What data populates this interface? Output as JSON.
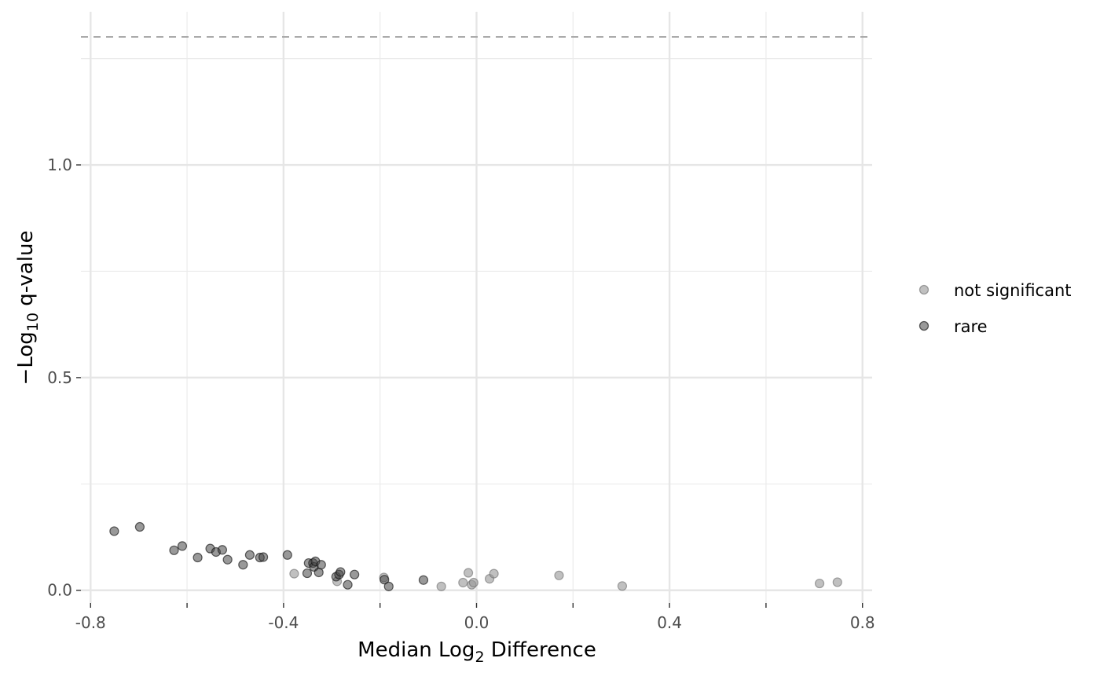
{
  "chart_data": {
    "type": "scatter",
    "title": "",
    "xlabel": "Median Log2 Difference",
    "xlabel_main": "Median Log",
    "xlabel_sub": "2",
    "xlabel_tail": " Difference",
    "ylabel": "−Log10 q-value",
    "ylabel_main": "−Log",
    "ylabel_sub": "10",
    "ylabel_tail": " q-value",
    "xlim": [
      -0.82,
      0.82
    ],
    "ylim": [
      -0.03,
      1.36
    ],
    "x_ticks": [
      -0.8,
      -0.4,
      0.0,
      0.4,
      0.8
    ],
    "x_tick_labels": [
      "-0.8",
      "-0.4",
      "0.0",
      "0.4",
      "0.8"
    ],
    "x_minor_ticks": [
      -0.6,
      -0.2,
      0.2,
      0.6
    ],
    "y_ticks": [
      0.0,
      0.5,
      1.0
    ],
    "y_tick_labels": [
      "0.0",
      "0.5",
      "1.0"
    ],
    "y_minor_ticks": [
      0.25,
      0.75,
      1.25
    ],
    "grid": true,
    "threshold_line": {
      "y": 1.301,
      "style": "dashed",
      "color": "#aaaaaa"
    },
    "legend_position": "right",
    "series": [
      {
        "name": "not significant",
        "color": "#b0b0b0",
        "points": [
          {
            "x": -0.378,
            "y": 0.039
          },
          {
            "x": -0.289,
            "y": 0.021
          },
          {
            "x": -0.192,
            "y": 0.03
          },
          {
            "x": -0.073,
            "y": 0.009
          },
          {
            "x": -0.028,
            "y": 0.018
          },
          {
            "x": -0.017,
            "y": 0.041
          },
          {
            "x": -0.01,
            "y": 0.013
          },
          {
            "x": -0.006,
            "y": 0.018
          },
          {
            "x": 0.027,
            "y": 0.027
          },
          {
            "x": 0.036,
            "y": 0.039
          },
          {
            "x": 0.171,
            "y": 0.035
          },
          {
            "x": 0.302,
            "y": 0.01
          },
          {
            "x": 0.711,
            "y": 0.016
          },
          {
            "x": 0.748,
            "y": 0.019
          }
        ]
      },
      {
        "name": "rare",
        "color": "#7a7a7a",
        "points": [
          {
            "x": -0.751,
            "y": 0.139
          },
          {
            "x": -0.698,
            "y": 0.149
          },
          {
            "x": -0.627,
            "y": 0.094
          },
          {
            "x": -0.61,
            "y": 0.104
          },
          {
            "x": -0.578,
            "y": 0.077
          },
          {
            "x": -0.552,
            "y": 0.098
          },
          {
            "x": -0.54,
            "y": 0.09
          },
          {
            "x": -0.527,
            "y": 0.095
          },
          {
            "x": -0.516,
            "y": 0.072
          },
          {
            "x": -0.484,
            "y": 0.06
          },
          {
            "x": -0.47,
            "y": 0.083
          },
          {
            "x": -0.449,
            "y": 0.077
          },
          {
            "x": -0.442,
            "y": 0.078
          },
          {
            "x": -0.392,
            "y": 0.083
          },
          {
            "x": -0.351,
            "y": 0.04
          },
          {
            "x": -0.348,
            "y": 0.064
          },
          {
            "x": -0.339,
            "y": 0.064
          },
          {
            "x": -0.337,
            "y": 0.055
          },
          {
            "x": -0.334,
            "y": 0.068
          },
          {
            "x": -0.327,
            "y": 0.042
          },
          {
            "x": -0.322,
            "y": 0.06
          },
          {
            "x": -0.291,
            "y": 0.032
          },
          {
            "x": -0.285,
            "y": 0.037
          },
          {
            "x": -0.282,
            "y": 0.043
          },
          {
            "x": -0.267,
            "y": 0.013
          },
          {
            "x": -0.253,
            "y": 0.037
          },
          {
            "x": -0.191,
            "y": 0.025
          },
          {
            "x": -0.182,
            "y": 0.009
          },
          {
            "x": -0.11,
            "y": 0.024
          }
        ]
      }
    ]
  }
}
